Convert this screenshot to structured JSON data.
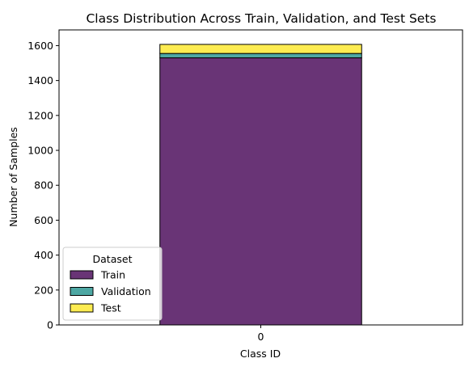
{
  "chart_data": {
    "type": "bar",
    "stacked": true,
    "title": "Class Distribution Across Train, Validation, and Test Sets",
    "xlabel": "Class ID",
    "ylabel": "Number of Samples",
    "categories": [
      "0"
    ],
    "ylim": [
      0,
      1690
    ],
    "yticks": [
      0,
      200,
      400,
      600,
      800,
      1000,
      1200,
      1400,
      1600
    ],
    "grid": false,
    "legend": {
      "title": "Dataset",
      "placement": "lower-left"
    },
    "series": [
      {
        "name": "Train",
        "values": [
          1530
        ],
        "color": "#440154"
      },
      {
        "name": "Validation",
        "values": [
          25
        ],
        "color": "#21918c"
      },
      {
        "name": "Test",
        "values": [
          52
        ],
        "color": "#fde725"
      }
    ]
  }
}
